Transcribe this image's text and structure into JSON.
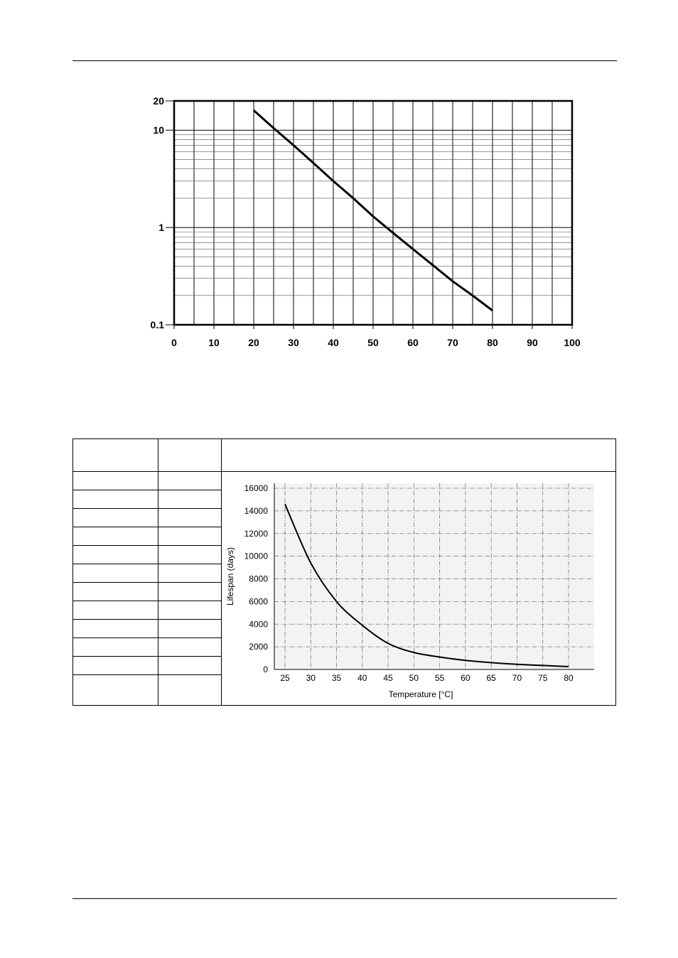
{
  "chart_data": [
    {
      "type": "line",
      "title": "",
      "xlabel": "",
      "ylabel": "",
      "y_scale": "log",
      "xlim": [
        0,
        100
      ],
      "ylim": [
        0.1,
        20
      ],
      "x_ticks": [
        "0",
        "10",
        "20",
        "30",
        "40",
        "50",
        "60",
        "70",
        "80",
        "90",
        "100"
      ],
      "y_ticks": [
        "0.1",
        "1",
        "10",
        "20"
      ],
      "grid": true,
      "series": [
        {
          "x": [
            20,
            25,
            30,
            35,
            40,
            45,
            50,
            55,
            60,
            65,
            70,
            75,
            80
          ],
          "values": [
            16,
            10.5,
            7.0,
            4.6,
            3.0,
            2.0,
            1.3,
            0.88,
            0.6,
            0.41,
            0.28,
            0.2,
            0.14
          ],
          "color": "#000000"
        }
      ]
    },
    {
      "type": "line",
      "title": "",
      "xlabel": "Temperature [°C]",
      "ylabel": "Lifespan (days)",
      "xlim": [
        25,
        80
      ],
      "ylim": [
        0,
        16000
      ],
      "x_ticks": [
        "25",
        "30",
        "35",
        "40",
        "45",
        "50",
        "55",
        "60",
        "65",
        "70",
        "75",
        "80"
      ],
      "y_ticks": [
        "0",
        "2000",
        "4000",
        "6000",
        "8000",
        "10000",
        "12000",
        "14000",
        "16000"
      ],
      "grid": true,
      "series": [
        {
          "x": [
            25,
            30,
            35,
            40,
            45,
            50,
            55,
            60,
            65,
            70,
            75,
            80
          ],
          "values": [
            14600,
            9400,
            6000,
            3900,
            2300,
            1500,
            1100,
            800,
            600,
            450,
            350,
            250
          ],
          "color": "#000000"
        }
      ]
    }
  ]
}
